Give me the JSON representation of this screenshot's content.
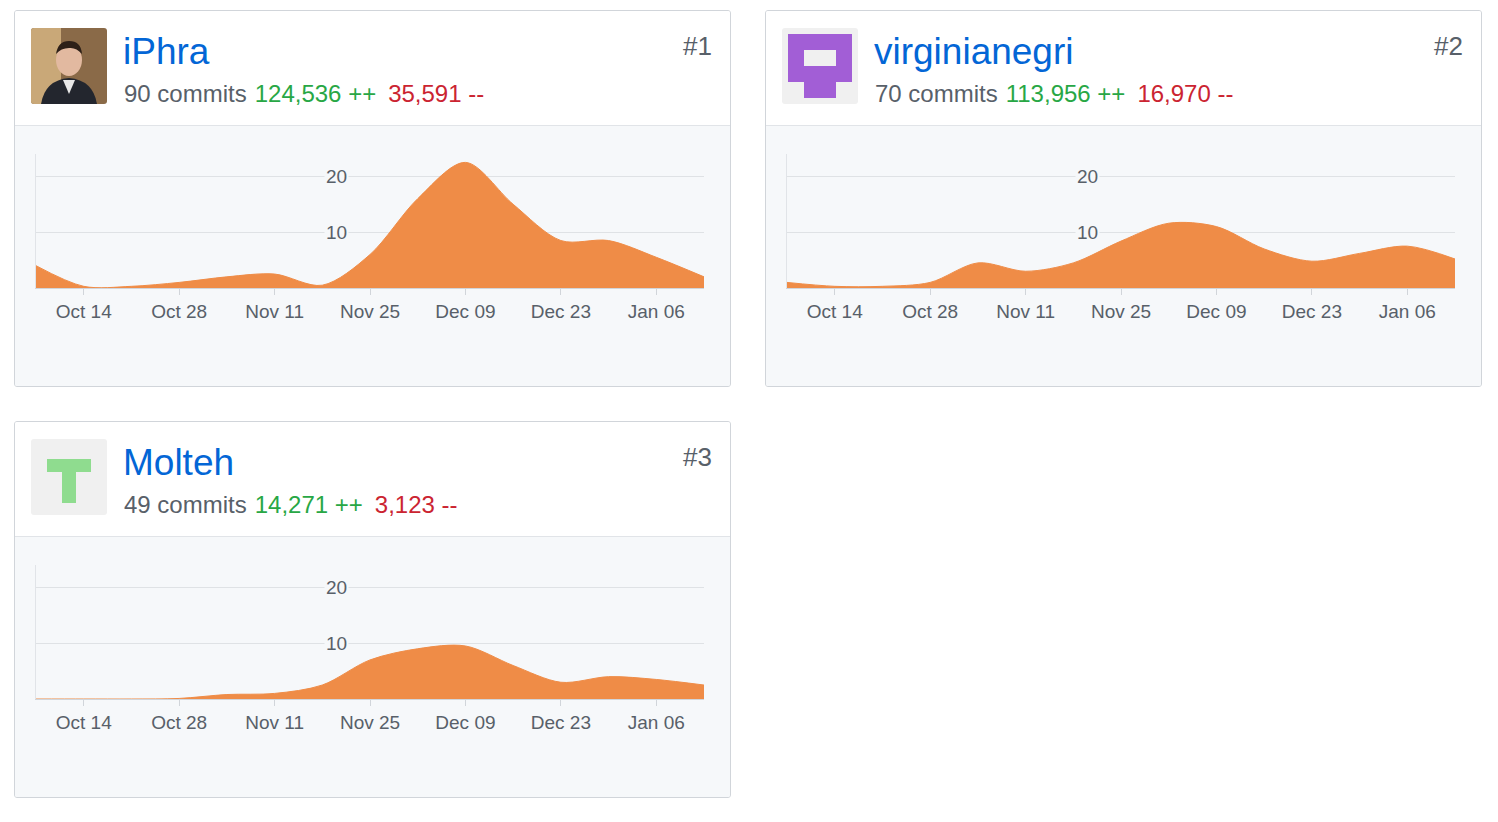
{
  "chart_data": [
    {
      "type": "area",
      "title": "iPhra",
      "subtitle": "90 commits",
      "annotations": [
        "124,536 ++",
        "35,591 --",
        "#1"
      ],
      "categories": [
        null,
        "Oct 14",
        null,
        "Oct 28",
        null,
        "Nov 11",
        null,
        "Nov 25",
        null,
        "Dec 09",
        null,
        "Dec 23",
        null,
        "Jan 06",
        null
      ],
      "values": [
        4,
        0.3,
        0.3,
        1,
        2,
        2.5,
        0.5,
        6,
        16,
        22.5,
        15,
        8.5,
        8.5,
        5.5,
        2
      ],
      "color": "#ef8c47",
      "line_style": "smooth",
      "ylim": [
        0,
        24
      ],
      "yticks": [
        10,
        20
      ],
      "grid": true
    },
    {
      "type": "area",
      "title": "virginianegri",
      "subtitle": "70 commits",
      "annotations": [
        "113,956 ++",
        "16,970 --",
        "#2"
      ],
      "categories": [
        null,
        "Oct 14",
        null,
        "Oct 28",
        null,
        "Nov 11",
        null,
        "Nov 25",
        null,
        "Dec 09",
        null,
        "Dec 23",
        null,
        "Jan 06",
        null
      ],
      "values": [
        1,
        0.3,
        0.3,
        1,
        4.5,
        3,
        4.5,
        8.4,
        11.6,
        11,
        7,
        4.8,
        6.2,
        7.5,
        5.2
      ],
      "color": "#ef8c47",
      "line_style": "smooth",
      "ylim": [
        0,
        24
      ],
      "yticks": [
        10,
        20
      ],
      "grid": true
    },
    {
      "type": "area",
      "title": "Molteh",
      "subtitle": "49 commits",
      "annotations": [
        "14,271 ++",
        "3,123 --",
        "#3"
      ],
      "categories": [
        null,
        "Oct 14",
        null,
        "Oct 28",
        null,
        "Nov 11",
        null,
        "Nov 25",
        null,
        "Dec 09",
        null,
        "Dec 23",
        null,
        "Jan 06",
        null
      ],
      "values": [
        0,
        0,
        0,
        0.1,
        0.8,
        1,
        2.5,
        7,
        9,
        9.5,
        6,
        3,
        4,
        3.5,
        2.5
      ],
      "color": "#ef8c47",
      "line_style": "smooth",
      "ylim": [
        0,
        24
      ],
      "yticks": [
        10,
        20
      ],
      "grid": true
    }
  ]
}
